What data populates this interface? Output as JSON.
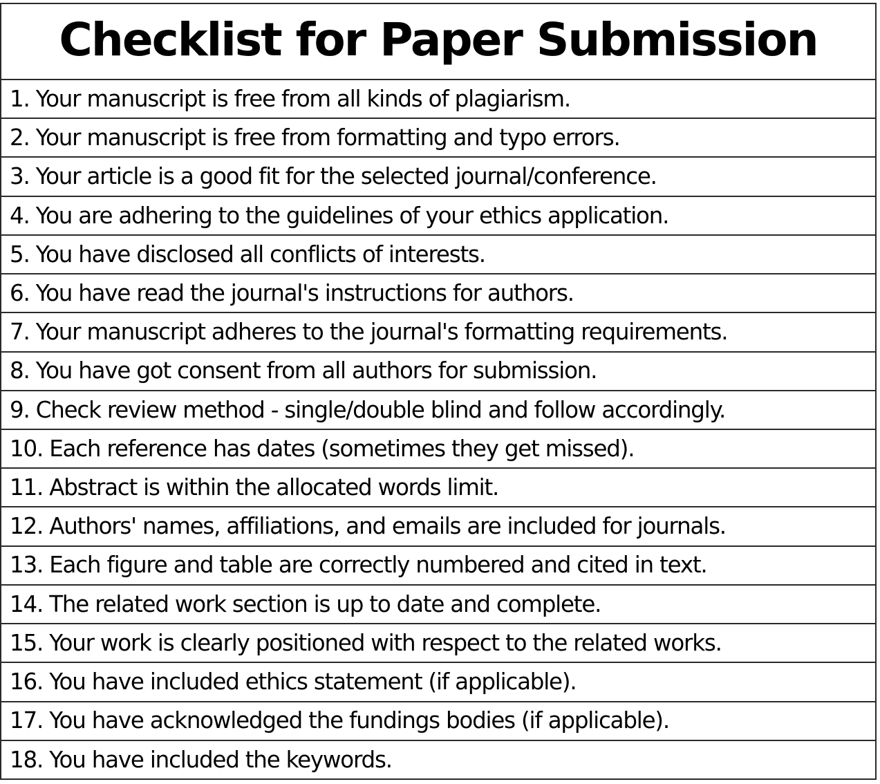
{
  "title": "Checklist for Paper Submission",
  "items": [
    "1. Your manuscript is free from all kinds of plagiarism.",
    "2. Your manuscript is free from formatting and typo errors.",
    "3. Your article is a good fit for the selected journal/conference.",
    "4. You are adhering to the guidelines of your ethics application.",
    "5. You have disclosed all conflicts of interests.",
    "6. You have read the journal's instructions for authors.",
    "7. Your manuscript adheres to the journal's formatting requirements.",
    "8. You have got consent from all authors for submission.",
    "9. Check review method - single/double blind and follow accordingly.",
    "10. Each reference has dates (sometimes they get missed).",
    "11. Abstract is within the allocated words limit.",
    "12. Authors' names, affiliations, and emails are included for journals.",
    "13. Each figure and table are correctly numbered and cited in text.",
    "14. The related work section is up to date and complete.",
    "15. Your work is clearly positioned with respect to the related works.",
    "16. You have included ethics statement (if applicable).",
    "17. You have acknowledged the fundings bodies (if applicable).",
    "18. You have included the keywords."
  ],
  "colors": {
    "border": "#2a2a2a",
    "text": "#000000",
    "background": "#ffffff"
  }
}
